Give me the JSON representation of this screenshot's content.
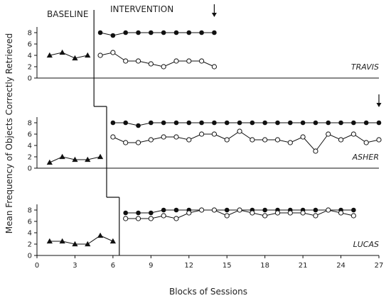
{
  "chart_data": {
    "type": "line",
    "phase_labels": {
      "baseline": "BASELINE",
      "intervention": "INTERVENTION"
    },
    "xlabel": "Blocks of Sessions",
    "ylabel": "Mean Frequency of Objects Correctly Retrieved",
    "x_ticks": [
      0,
      3,
      6,
      9,
      12,
      15,
      18,
      21,
      24,
      27
    ],
    "xlim": [
      0,
      27
    ],
    "y_ticks": [
      0,
      2,
      4,
      6,
      8
    ],
    "ylim": [
      0,
      9
    ],
    "grid": false,
    "panels": [
      {
        "participant": "TRAVIS",
        "phase_change_after": 4.5,
        "arrow_at": 14,
        "series": [
          {
            "marker": "filled-triangle",
            "x": [
              1,
              2,
              3,
              4
            ],
            "y": [
              4,
              4.5,
              3.5,
              4
            ]
          },
          {
            "marker": "filled-circle",
            "x": [
              5,
              6,
              7,
              8,
              9,
              10,
              11,
              12,
              13,
              14
            ],
            "y": [
              8,
              7.5,
              8,
              8,
              8,
              8,
              8,
              8,
              8,
              8
            ]
          },
          {
            "marker": "open-circle",
            "x": [
              5,
              6,
              7,
              8,
              9,
              10,
              11,
              12,
              13,
              14
            ],
            "y": [
              4,
              4.5,
              3,
              3,
              2.5,
              2,
              3,
              3,
              3,
              2
            ]
          }
        ]
      },
      {
        "participant": "ASHER",
        "phase_change_after": 5.5,
        "arrow_at": 27,
        "series": [
          {
            "marker": "filled-triangle",
            "x": [
              1,
              2,
              3,
              4,
              5
            ],
            "y": [
              1,
              2,
              1.5,
              1.5,
              2
            ]
          },
          {
            "marker": "filled-circle",
            "x": [
              6,
              7,
              8,
              9,
              10,
              11,
              12,
              13,
              14,
              15,
              16,
              17,
              18,
              19,
              20,
              21,
              22,
              23,
              24,
              25,
              26,
              27
            ],
            "y": [
              8,
              8,
              7.5,
              8,
              8,
              8,
              8,
              8,
              8,
              8,
              8,
              8,
              8,
              8,
              8,
              8,
              8,
              8,
              8,
              8,
              8,
              8
            ]
          },
          {
            "marker": "open-circle",
            "x": [
              6,
              7,
              8,
              9,
              10,
              11,
              12,
              13,
              14,
              15,
              16,
              17,
              18,
              19,
              20,
              21,
              22,
              23,
              24,
              25,
              26,
              27
            ],
            "y": [
              5.5,
              4.5,
              4.5,
              5,
              5.5,
              5.5,
              5,
              6,
              6,
              5,
              6.5,
              5,
              5,
              5,
              4.5,
              5.5,
              3,
              6,
              5,
              6,
              4.5,
              5
            ]
          }
        ]
      },
      {
        "participant": "LUCAS",
        "phase_change_after": 6.5,
        "arrow_at": null,
        "series": [
          {
            "marker": "filled-triangle",
            "x": [
              1,
              2,
              3,
              4,
              5,
              6
            ],
            "y": [
              2.5,
              2.5,
              2,
              2,
              3.5,
              2.5
            ]
          },
          {
            "marker": "filled-circle",
            "x": [
              7,
              8,
              9,
              10,
              11,
              12,
              13,
              14,
              15,
              16,
              17,
              18,
              19,
              20,
              21,
              22,
              23,
              24,
              25
            ],
            "y": [
              7.5,
              7.5,
              7.5,
              8,
              8,
              8,
              8,
              8,
              8,
              8,
              8,
              8,
              8,
              8,
              8,
              8,
              8,
              8,
              8
            ]
          },
          {
            "marker": "open-circle",
            "x": [
              7,
              8,
              9,
              10,
              11,
              12,
              13,
              14,
              15,
              16,
              17,
              18,
              19,
              20,
              21,
              22,
              23,
              24,
              25
            ],
            "y": [
              6.5,
              6.5,
              6.5,
              7,
              6.5,
              7.5,
              8,
              8,
              7,
              8,
              7.5,
              7,
              7.5,
              7.5,
              7.5,
              7,
              8,
              7.5,
              7
            ]
          }
        ]
      }
    ]
  }
}
